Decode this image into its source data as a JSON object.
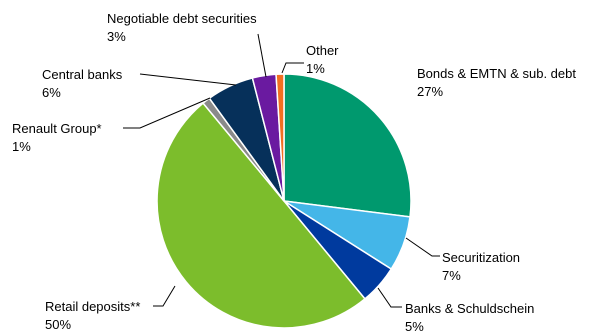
{
  "chart_data": {
    "type": "pie",
    "title": "",
    "start_angle_deg": 0,
    "direction": "clockwise",
    "slices": [
      {
        "name": "Bonds & EMTN & sub. debt",
        "value": 27,
        "label": "27%",
        "color": "#00996e"
      },
      {
        "name": "Securitization",
        "value": 7,
        "label": "7%",
        "color": "#44b6e8"
      },
      {
        "name": "Banks & Schuldschein",
        "value": 5,
        "label": "5%",
        "color": "#003a9e"
      },
      {
        "name": "Retail deposits**",
        "value": 50,
        "label": "50%",
        "color": "#7cbd2c"
      },
      {
        "name": "Renault Group*",
        "value": 1,
        "label": "1%",
        "color": "#8a8a8a"
      },
      {
        "name": "Central banks",
        "value": 6,
        "label": "6%",
        "color": "#06305a"
      },
      {
        "name": "Negotiable debt securities",
        "value": 3,
        "label": "3%",
        "color": "#6a1aa0"
      },
      {
        "name": "Other",
        "value": 1,
        "label": "1%",
        "color": "#f26f21"
      }
    ]
  }
}
